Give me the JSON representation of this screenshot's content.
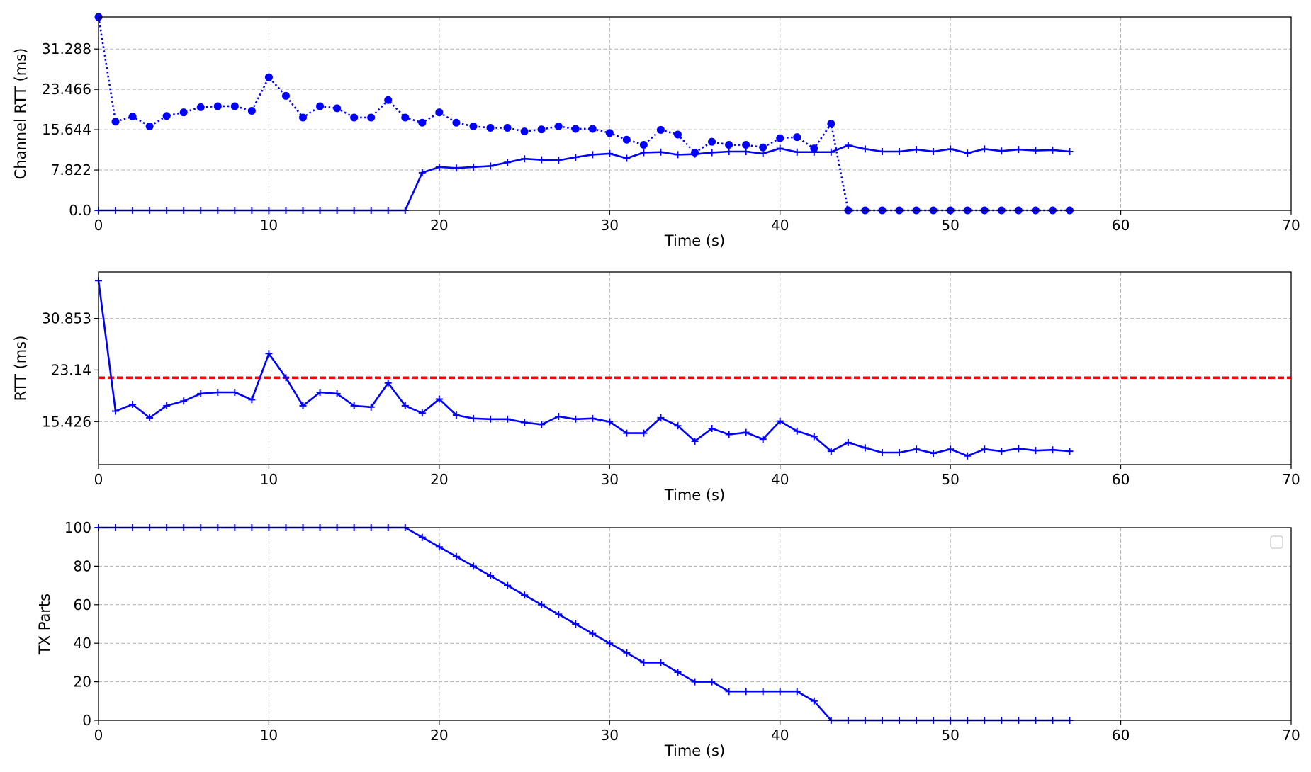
{
  "chart_data": [
    {
      "type": "line",
      "xlabel": "Time (s)",
      "ylabel": "Channel RTT (ms)",
      "xlim": [
        0,
        70
      ],
      "ylim": [
        0,
        37.5
      ],
      "xticks": [
        0,
        10,
        20,
        30,
        40,
        50,
        60,
        70
      ],
      "yticks": [
        "0.0",
        "7.822",
        "15.644",
        "23.466",
        "31.288"
      ],
      "grid": true,
      "series": [
        {
          "style": "dotted-circle",
          "color": "#0000ff",
          "x": [
            0,
            1,
            2,
            3,
            4,
            5,
            6,
            7,
            8,
            9,
            10,
            11,
            12,
            13,
            14,
            15,
            16,
            17,
            18,
            19,
            20,
            21,
            22,
            23,
            24,
            25,
            26,
            27,
            28,
            29,
            30,
            31,
            32,
            33,
            34,
            35,
            36,
            37,
            38,
            39,
            40,
            41,
            42,
            43,
            44,
            45,
            46,
            47,
            48,
            49,
            50,
            51,
            52,
            53,
            54,
            55,
            56,
            57
          ],
          "values": [
            37.5,
            17.2,
            18.2,
            16.3,
            18.3,
            19.0,
            20.0,
            20.2,
            20.2,
            19.3,
            25.8,
            22.2,
            18.0,
            20.2,
            19.8,
            18.0,
            18.0,
            21.4,
            18.0,
            17.0,
            19.0,
            17.0,
            16.3,
            16.0,
            16.0,
            15.3,
            15.7,
            16.3,
            15.8,
            15.8,
            15.0,
            13.7,
            12.7,
            15.6,
            14.7,
            11.2,
            13.3,
            12.7,
            12.7,
            12.2,
            14.0,
            14.2,
            12.0,
            16.8,
            0,
            0,
            0,
            0,
            0,
            0,
            0,
            0,
            0,
            0,
            0,
            0,
            0,
            0
          ]
        },
        {
          "style": "solid-plus",
          "color": "#0000ff",
          "x": [
            0,
            1,
            2,
            3,
            4,
            5,
            6,
            7,
            8,
            9,
            10,
            11,
            12,
            13,
            14,
            15,
            16,
            17,
            18,
            19,
            20,
            21,
            22,
            23,
            24,
            25,
            26,
            27,
            28,
            29,
            30,
            31,
            32,
            33,
            34,
            35,
            36,
            37,
            38,
            39,
            40,
            41,
            42,
            43,
            44,
            45,
            46,
            47,
            48,
            49,
            50,
            51,
            52,
            53,
            54,
            55,
            56,
            57
          ],
          "values": [
            0,
            0,
            0,
            0,
            0,
            0,
            0,
            0,
            0,
            0,
            0,
            0,
            0,
            0,
            0,
            0,
            0,
            0,
            0,
            7.3,
            8.4,
            8.2,
            8.4,
            8.6,
            9.3,
            10.0,
            9.8,
            9.7,
            10.3,
            10.8,
            11.0,
            10.1,
            11.2,
            11.3,
            10.8,
            10.9,
            11.2,
            11.4,
            11.4,
            11.0,
            12.0,
            11.3,
            11.3,
            11.3,
            12.6,
            11.9,
            11.4,
            11.4,
            11.8,
            11.4,
            11.9,
            11.1,
            11.9,
            11.5,
            11.8,
            11.6,
            11.7,
            11.4
          ]
        }
      ]
    },
    {
      "type": "line",
      "xlabel": "Time (s)",
      "ylabel": "RTT (ms)",
      "xlim": [
        0,
        70
      ],
      "ylim": [
        9,
        37.8
      ],
      "xticks": [
        0,
        10,
        20,
        30,
        40,
        50,
        60,
        70
      ],
      "yticks": [
        "15.426",
        "23.14",
        "30.853"
      ],
      "grid": true,
      "threshold": {
        "value": 22.0,
        "color": "#ff0000",
        "style": "dashed"
      },
      "series": [
        {
          "style": "solid-plus",
          "color": "#0000ff",
          "x": [
            0,
            1,
            2,
            3,
            4,
            5,
            6,
            7,
            8,
            9,
            10,
            11,
            12,
            13,
            14,
            15,
            16,
            17,
            18,
            19,
            20,
            21,
            22,
            23,
            24,
            25,
            26,
            27,
            28,
            29,
            30,
            31,
            32,
            33,
            34,
            35,
            36,
            37,
            38,
            39,
            40,
            41,
            42,
            43,
            44,
            45,
            46,
            47,
            48,
            49,
            50,
            51,
            52,
            53,
            54,
            55,
            56,
            57
          ],
          "values": [
            36.5,
            17.0,
            18.0,
            16.0,
            17.8,
            18.5,
            19.6,
            19.8,
            19.8,
            18.7,
            25.6,
            22.0,
            17.8,
            19.8,
            19.6,
            17.8,
            17.6,
            21.2,
            17.8,
            16.7,
            18.8,
            16.4,
            15.9,
            15.8,
            15.8,
            15.3,
            15.0,
            16.2,
            15.8,
            15.9,
            15.4,
            13.7,
            13.7,
            16.0,
            14.8,
            12.5,
            14.4,
            13.5,
            13.8,
            12.8,
            15.5,
            14.0,
            13.2,
            11.0,
            12.3,
            11.5,
            10.8,
            10.8,
            11.3,
            10.7,
            11.3,
            10.3,
            11.3,
            11.0,
            11.4,
            11.1,
            11.2,
            11.0
          ]
        }
      ]
    },
    {
      "type": "line",
      "xlabel": "Time (s)",
      "ylabel": "TX Parts",
      "xlim": [
        0,
        70
      ],
      "ylim": [
        0,
        100
      ],
      "xticks": [
        0,
        10,
        20,
        30,
        40,
        50,
        60,
        70
      ],
      "yticks": [
        "0",
        "20",
        "40",
        "60",
        "80",
        "100"
      ],
      "grid": true,
      "legend": "top-right (empty)",
      "series": [
        {
          "style": "solid-plus",
          "color": "#0000ff",
          "x": [
            0,
            1,
            2,
            3,
            4,
            5,
            6,
            7,
            8,
            9,
            10,
            11,
            12,
            13,
            14,
            15,
            16,
            17,
            18,
            19,
            20,
            21,
            22,
            23,
            24,
            25,
            26,
            27,
            28,
            29,
            30,
            31,
            32,
            33,
            34,
            35,
            36,
            37,
            38,
            39,
            40,
            41,
            42,
            43,
            44,
            45,
            46,
            47,
            48,
            49,
            50,
            51,
            52,
            53,
            54,
            55,
            56,
            57
          ],
          "values": [
            100,
            100,
            100,
            100,
            100,
            100,
            100,
            100,
            100,
            100,
            100,
            100,
            100,
            100,
            100,
            100,
            100,
            100,
            100,
            95,
            90,
            85,
            80,
            75,
            70,
            65,
            60,
            55,
            50,
            45,
            40,
            35,
            30,
            30,
            25,
            20,
            20,
            15,
            15,
            15,
            15,
            15,
            10,
            0,
            0,
            0,
            0,
            0,
            0,
            0,
            0,
            0,
            0,
            0,
            0,
            0,
            0,
            0
          ]
        }
      ]
    }
  ]
}
